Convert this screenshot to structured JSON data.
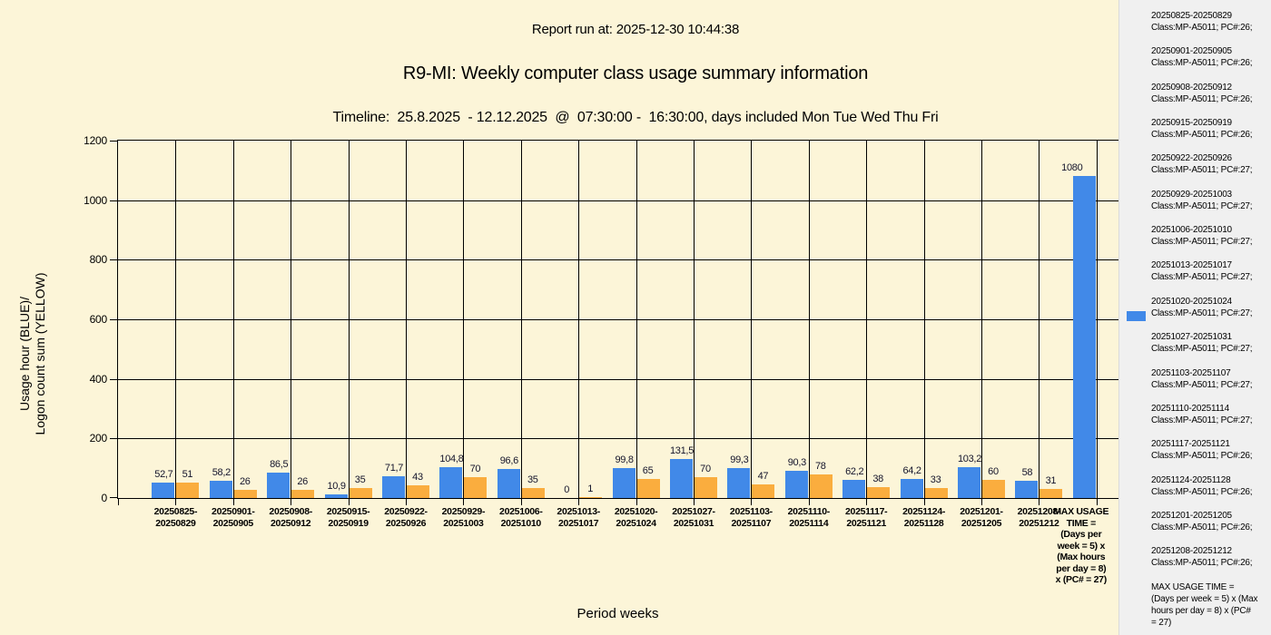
{
  "header": {
    "report_run": "Report run at: 2025-12-30 10:44:38",
    "title": "R9-MI: Weekly computer class usage summary information",
    "timeline": "Timeline:  25.8.2025  - 12.12.2025  @  07:30:00 -  16:30:00, days included Mon Tue Wed Thu Fri"
  },
  "axes": {
    "y_title_line1": "Usage hour (BLUE)/",
    "y_title_line2": "Logon count sum (YELLOW)",
    "x_title": "Period weeks"
  },
  "chart_data": {
    "type": "bar",
    "title": "R9-MI: Weekly computer class usage summary information",
    "xlabel": "Period weeks",
    "ylabel": "Usage hour (BLUE)/ Logon count sum (YELLOW)",
    "ylim": [
      0,
      1200
    ],
    "yticks": [
      0,
      200,
      400,
      600,
      800,
      1000,
      1200
    ],
    "grid": true,
    "legend_position": "right",
    "background": "#FCF5D8",
    "categories": [
      "20250825-20250829",
      "20250901-20250905",
      "20250908-20250912",
      "20250915-20250919",
      "20250922-20250926",
      "20250929-20251003",
      "20251006-20251010",
      "20251013-20251017",
      "20251020-20251024",
      "20251027-20251031",
      "20251103-20251107",
      "20251110-20251114",
      "20251117-20251121",
      "20251124-20251128",
      "20251201-20251205",
      "20251208-20251212",
      "MAX USAGE TIME = (Days per week = 5) x (Max hours per day = 8) x (PC# = 27)"
    ],
    "x_tick_lines": [
      [
        "20250825-",
        "20250829"
      ],
      [
        "20250901-",
        "20250905"
      ],
      [
        "20250908-",
        "20250912"
      ],
      [
        "20250915-",
        "20250919"
      ],
      [
        "20250922-",
        "20250926"
      ],
      [
        "20250929-",
        "20251003"
      ],
      [
        "20251006-",
        "20251010"
      ],
      [
        "20251013-",
        "20251017"
      ],
      [
        "20251020-",
        "20251024"
      ],
      [
        "20251027-",
        "20251031"
      ],
      [
        "20251103-",
        "20251107"
      ],
      [
        "20251110-",
        "20251114"
      ],
      [
        "20251117-",
        "20251121"
      ],
      [
        "20251124-",
        "20251128"
      ],
      [
        "20251201-",
        "20251205"
      ],
      [
        "20251208-",
        "20251212"
      ],
      [
        "MAX USAGE",
        "TIME =",
        "(Days per",
        "week = 5) x",
        "(Max hours",
        "per day = 8)",
        "x (PC# = 27)"
      ]
    ],
    "series": [
      {
        "name": "Usage hour",
        "color": "#4189E8",
        "values": [
          52.7,
          58.2,
          86.5,
          10.9,
          71.7,
          104.8,
          96.6,
          0,
          99.8,
          131.5,
          99.3,
          90.3,
          62.2,
          64.2,
          103.2,
          58,
          1080
        ],
        "value_labels": [
          "52,7",
          "58,2",
          "86,5",
          "10,9",
          "71,7",
          "104,8",
          "96,6",
          "0",
          "99,8",
          "131,5",
          "99,3",
          "90,3",
          "62,2",
          "64,2",
          "103,2",
          "58",
          "1080"
        ]
      },
      {
        "name": "Logon count sum",
        "color": "#FAAD3E",
        "values": [
          51,
          26,
          26,
          35,
          43,
          70,
          35,
          1,
          65,
          70,
          47,
          78,
          38,
          33,
          60,
          31,
          null
        ],
        "value_labels": [
          "51",
          "26",
          "26",
          "35",
          "43",
          "70",
          "35",
          "1",
          "65",
          "70",
          "47",
          "78",
          "38",
          "33",
          "60",
          "31",
          ""
        ]
      }
    ]
  },
  "legend": {
    "swatch_color": "#4189E8",
    "entries": [
      {
        "period": "20250825-20250829",
        "class_info": "Class:MP-A5011; PC#:26;"
      },
      {
        "period": "20250901-20250905",
        "class_info": "Class:MP-A5011; PC#:26;"
      },
      {
        "period": "20250908-20250912",
        "class_info": "Class:MP-A5011; PC#:26;"
      },
      {
        "period": "20250915-20250919",
        "class_info": "Class:MP-A5011; PC#:26;"
      },
      {
        "period": "20250922-20250926",
        "class_info": "Class:MP-A5011; PC#:27;"
      },
      {
        "period": "20250929-20251003",
        "class_info": "Class:MP-A5011; PC#:27;"
      },
      {
        "period": "20251006-20251010",
        "class_info": "Class:MP-A5011; PC#:27;"
      },
      {
        "period": "20251013-20251017",
        "class_info": "Class:MP-A5011; PC#:27;"
      },
      {
        "period": "20251020-20251024",
        "class_info": "Class:MP-A5011; PC#:27;"
      },
      {
        "period": "20251027-20251031",
        "class_info": "Class:MP-A5011; PC#:27;"
      },
      {
        "period": "20251103-20251107",
        "class_info": "Class:MP-A5011; PC#:27;"
      },
      {
        "period": "20251110-20251114",
        "class_info": "Class:MP-A5011; PC#:27;"
      },
      {
        "period": "20251117-20251121",
        "class_info": "Class:MP-A5011; PC#:26;"
      },
      {
        "period": "20251124-20251128",
        "class_info": "Class:MP-A5011; PC#:26;"
      },
      {
        "period": "20251201-20251205",
        "class_info": "Class:MP-A5011; PC#:26;"
      },
      {
        "period": "20251208-20251212",
        "class_info": "Class:MP-A5011; PC#:26;"
      }
    ],
    "max_note": "MAX USAGE TIME =\n (Days per week = 5) x (Max\n hours per day = 8) x (PC#\n = 27)"
  }
}
